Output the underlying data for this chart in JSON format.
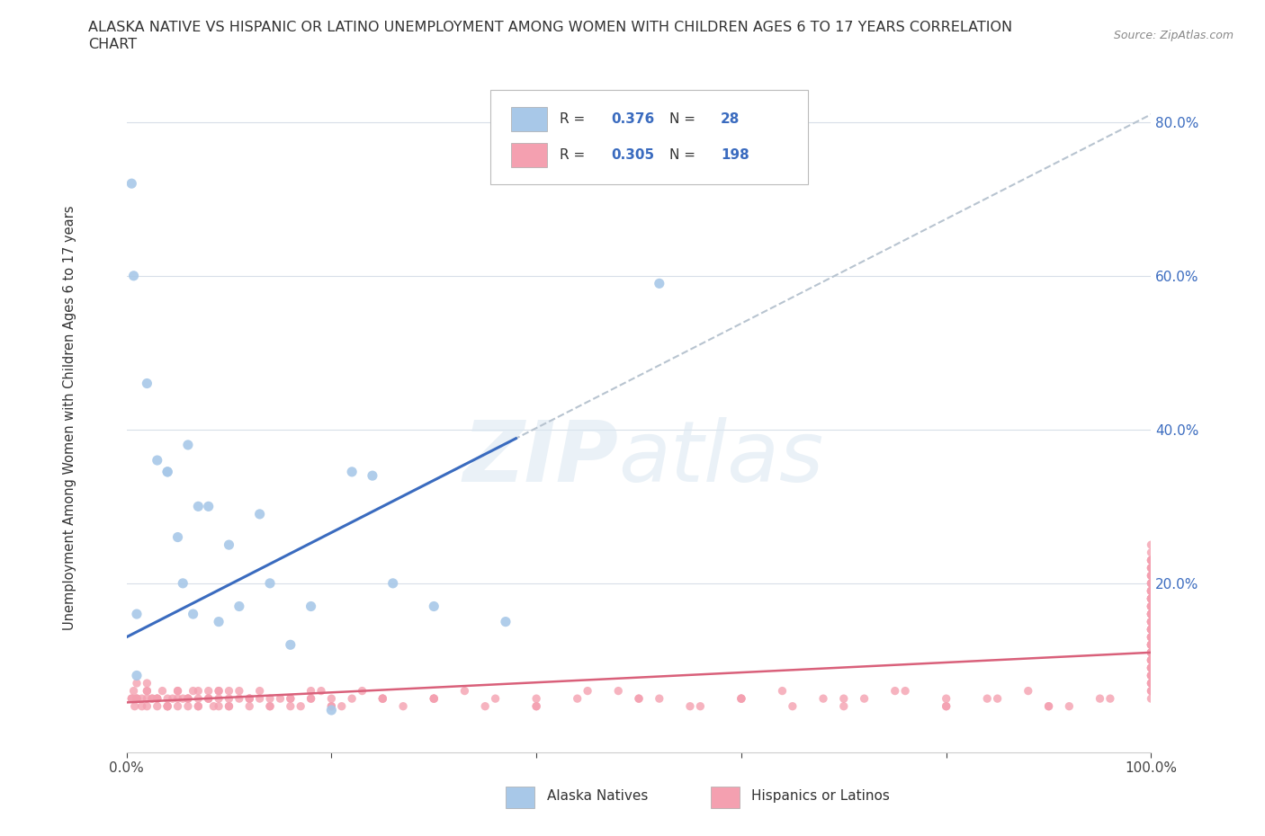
{
  "title_line1": "ALASKA NATIVE VS HISPANIC OR LATINO UNEMPLOYMENT AMONG WOMEN WITH CHILDREN AGES 6 TO 17 YEARS CORRELATION",
  "title_line2": "CHART",
  "source": "Source: ZipAtlas.com",
  "ylabel": "Unemployment Among Women with Children Ages 6 to 17 years",
  "xlim": [
    0,
    1.0
  ],
  "ylim": [
    -0.02,
    0.85
  ],
  "blue_R": 0.376,
  "blue_N": 28,
  "pink_R": 0.305,
  "pink_N": 198,
  "alaska_color": "#a8c8e8",
  "hispanic_color": "#f4a0b0",
  "blue_line_color": "#3a6bbf",
  "pink_line_color": "#d9607a",
  "gray_dash_color": "#b8c4d0",
  "background_color": "#ffffff",
  "alaska_x": [
    0.005,
    0.007,
    0.01,
    0.01,
    0.02,
    0.03,
    0.04,
    0.04,
    0.05,
    0.055,
    0.06,
    0.065,
    0.07,
    0.08,
    0.09,
    0.1,
    0.11,
    0.13,
    0.14,
    0.16,
    0.18,
    0.2,
    0.22,
    0.24,
    0.26,
    0.3,
    0.37,
    0.52
  ],
  "alaska_y": [
    0.72,
    0.6,
    0.16,
    0.08,
    0.46,
    0.36,
    0.345,
    0.345,
    0.26,
    0.2,
    0.38,
    0.16,
    0.3,
    0.3,
    0.15,
    0.25,
    0.17,
    0.29,
    0.2,
    0.12,
    0.17,
    0.035,
    0.345,
    0.34,
    0.2,
    0.17,
    0.15,
    0.59
  ],
  "hisp_x": [
    0.005,
    0.007,
    0.008,
    0.01,
    0.01,
    0.015,
    0.02,
    0.02,
    0.02,
    0.025,
    0.03,
    0.03,
    0.035,
    0.04,
    0.04,
    0.045,
    0.05,
    0.05,
    0.055,
    0.06,
    0.06,
    0.065,
    0.07,
    0.07,
    0.08,
    0.08,
    0.085,
    0.09,
    0.09,
    0.1,
    0.1,
    0.11,
    0.11,
    0.12,
    0.12,
    0.13,
    0.13,
    0.14,
    0.15,
    0.16,
    0.17,
    0.18,
    0.19,
    0.2,
    0.21,
    0.22,
    0.23,
    0.25,
    0.27,
    0.3,
    0.33,
    0.36,
    0.4,
    0.44,
    0.48,
    0.52,
    0.56,
    0.6,
    0.64,
    0.68,
    0.72,
    0.76,
    0.8,
    0.84,
    0.88,
    0.92,
    0.96,
    1.0,
    1.0,
    1.0,
    1.0,
    1.0,
    1.0,
    1.0,
    1.0,
    1.0,
    1.0,
    1.0,
    1.0,
    1.0,
    1.0,
    1.0,
    1.0,
    1.0,
    1.0,
    1.0,
    1.0,
    1.0,
    1.0,
    1.0,
    1.0,
    1.0,
    1.0,
    1.0,
    1.0,
    1.0,
    1.0,
    1.0,
    1.0,
    1.0,
    0.005,
    0.01,
    0.015,
    0.02,
    0.025,
    0.03,
    0.04,
    0.05,
    0.06,
    0.07,
    0.08,
    0.09,
    0.1,
    0.12,
    0.14,
    0.16,
    0.18,
    0.2,
    0.25,
    0.3,
    0.35,
    0.4,
    0.45,
    0.5,
    0.55,
    0.6,
    0.65,
    0.7,
    0.75,
    0.8,
    0.85,
    0.9,
    0.95,
    1.0,
    1.0,
    1.0,
    1.0,
    1.0,
    1.0,
    1.0,
    1.0,
    1.0,
    1.0,
    1.0,
    1.0,
    1.0,
    1.0,
    1.0,
    1.0,
    1.0,
    0.01,
    0.02,
    0.03,
    0.04,
    0.05,
    0.06,
    0.07,
    0.08,
    0.09,
    0.1,
    0.12,
    0.14,
    0.16,
    0.18,
    0.2,
    0.25,
    0.3,
    0.4,
    0.5,
    0.6,
    0.7,
    0.8,
    0.9,
    1.0,
    1.0,
    1.0,
    1.0,
    1.0,
    1.0,
    1.0,
    1.0,
    1.0,
    1.0,
    1.0,
    1.0,
    1.0,
    1.0,
    1.0,
    1.0,
    1.0,
    1.0,
    1.0,
    1.0,
    1.0,
    1.0,
    1.0,
    1.0,
    1.0
  ],
  "hisp_y": [
    0.05,
    0.06,
    0.04,
    0.07,
    0.05,
    0.05,
    0.06,
    0.04,
    0.07,
    0.05,
    0.05,
    0.04,
    0.06,
    0.05,
    0.04,
    0.05,
    0.06,
    0.04,
    0.05,
    0.05,
    0.04,
    0.06,
    0.05,
    0.04,
    0.05,
    0.06,
    0.04,
    0.05,
    0.06,
    0.05,
    0.04,
    0.05,
    0.06,
    0.05,
    0.04,
    0.05,
    0.06,
    0.04,
    0.05,
    0.05,
    0.04,
    0.05,
    0.06,
    0.05,
    0.04,
    0.05,
    0.06,
    0.05,
    0.04,
    0.05,
    0.06,
    0.05,
    0.04,
    0.05,
    0.06,
    0.05,
    0.04,
    0.05,
    0.06,
    0.05,
    0.05,
    0.06,
    0.04,
    0.05,
    0.06,
    0.04,
    0.05,
    0.06,
    0.07,
    0.08,
    0.09,
    0.1,
    0.11,
    0.12,
    0.14,
    0.15,
    0.16,
    0.17,
    0.18,
    0.19,
    0.05,
    0.06,
    0.07,
    0.08,
    0.09,
    0.1,
    0.11,
    0.12,
    0.13,
    0.14,
    0.15,
    0.16,
    0.17,
    0.18,
    0.19,
    0.2,
    0.21,
    0.22,
    0.23,
    0.25,
    0.05,
    0.05,
    0.04,
    0.06,
    0.05,
    0.05,
    0.04,
    0.06,
    0.05,
    0.04,
    0.05,
    0.06,
    0.04,
    0.05,
    0.05,
    0.04,
    0.05,
    0.04,
    0.05,
    0.05,
    0.04,
    0.05,
    0.06,
    0.05,
    0.04,
    0.05,
    0.04,
    0.05,
    0.06,
    0.04,
    0.05,
    0.04,
    0.05,
    0.07,
    0.08,
    0.09,
    0.1,
    0.11,
    0.12,
    0.13,
    0.14,
    0.15,
    0.16,
    0.17,
    0.18,
    0.19,
    0.2,
    0.21,
    0.22,
    0.23,
    0.05,
    0.05,
    0.05,
    0.04,
    0.05,
    0.05,
    0.06,
    0.05,
    0.04,
    0.06,
    0.05,
    0.04,
    0.05,
    0.06,
    0.04,
    0.05,
    0.05,
    0.04,
    0.05,
    0.05,
    0.04,
    0.05,
    0.04,
    0.08,
    0.09,
    0.1,
    0.11,
    0.12,
    0.13,
    0.14,
    0.15,
    0.16,
    0.17,
    0.18,
    0.19,
    0.2,
    0.21,
    0.22,
    0.23,
    0.24,
    0.12,
    0.13,
    0.14,
    0.15,
    0.16,
    0.17,
    0.18,
    0.19
  ]
}
